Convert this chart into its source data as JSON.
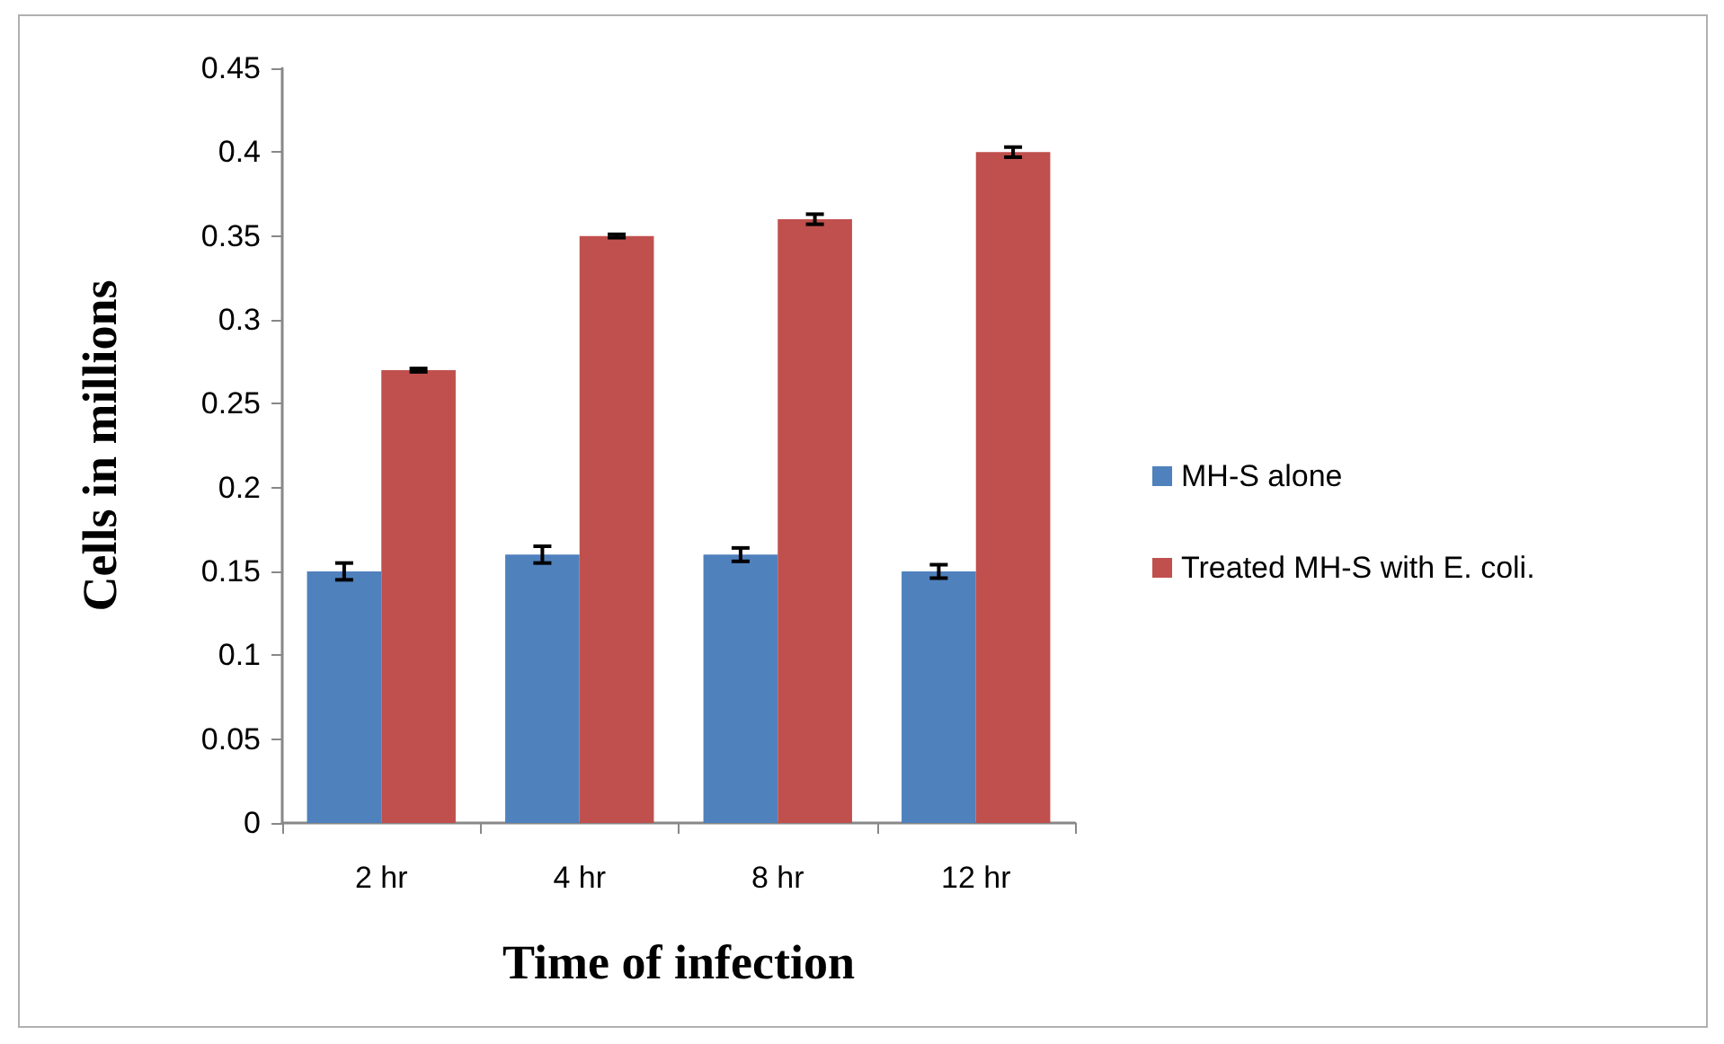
{
  "chart_data": {
    "type": "bar",
    "categories": [
      "2 hr",
      "4 hr",
      "8 hr",
      "12 hr"
    ],
    "xlabel": "Time of infection",
    "ylabel": "Cells in millions",
    "series": [
      {
        "name": "MH-S alone",
        "color": "#4f81bd",
        "values": [
          0.15,
          0.16,
          0.16,
          0.15
        ],
        "errors": [
          0.005,
          0.005,
          0.004,
          0.004
        ]
      },
      {
        "name": "Treated MH-S with E. coli.",
        "color": "#c0504d",
        "values": [
          0.27,
          0.35,
          0.36,
          0.4
        ],
        "errors": [
          0.001,
          0.001,
          0.003,
          0.003
        ]
      }
    ],
    "ylim": [
      0,
      0.45
    ],
    "yticks": [
      0,
      0.05,
      0.1,
      0.15,
      0.2,
      0.25,
      0.3,
      0.35,
      0.4,
      0.45
    ],
    "grid": false,
    "legend": "right"
  }
}
